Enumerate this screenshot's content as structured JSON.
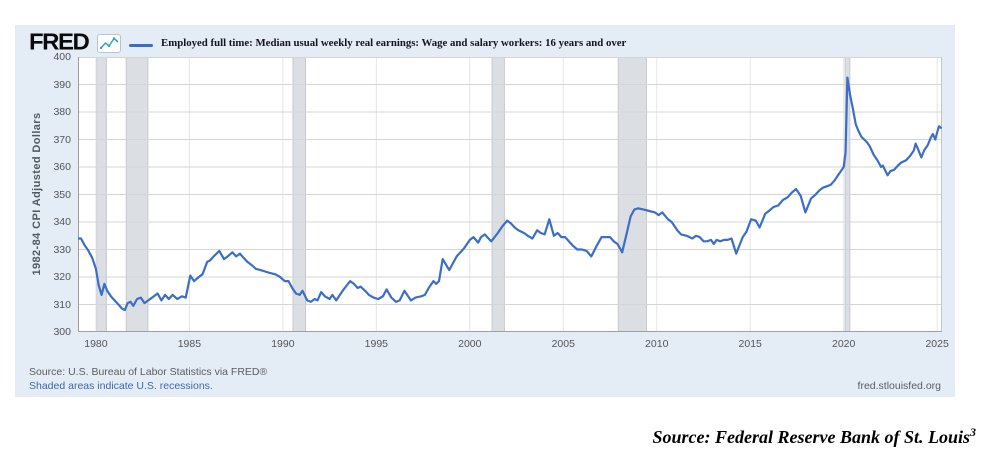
{
  "chart": {
    "brand": "FRED",
    "legend_label": "Employed full time: Median usual weekly real earnings: Wage and salary workers: 16 years and over",
    "y_axis_label": "1982-84 CPI Adjusted Dollars",
    "source_line1": "Source: U.S. Bureau of Labor Statistics via FRED®",
    "source_line2": "Shaded areas indicate U.S. recessions.",
    "site_link": "fred.stlouisfed.org",
    "colors": {
      "card_background": "#e4ecf6",
      "plot_background": "#ffffff",
      "line": "#3c6ec8",
      "recession_band": "#dbdee2",
      "recession_edge": "#c6cacf",
      "gridline": "#d5d5d5",
      "vertical_gridline": "#e4e6e9",
      "axis_line": "#a0a0a0",
      "right_border": "#c6c6c6",
      "tick_text": "#545658",
      "link_blue": "#3e69a9",
      "icon_teal": "#35a0bd"
    }
  },
  "caption": {
    "text": "Source: Federal Reserve Bank of St. Louis",
    "superscript": "3"
  },
  "chart_data": {
    "type": "line",
    "title": "Employed full time: Median usual weekly real earnings: Wage and salary workers: 16 years and over",
    "xlabel": "",
    "ylabel": "1982-84 CPI Adjusted Dollars",
    "xlim": [
      1979.04,
      2025.26
    ],
    "ylim": [
      300,
      400
    ],
    "x_ticks": [
      1980,
      1985,
      1990,
      1995,
      2000,
      2005,
      2010,
      2015,
      2020,
      2025
    ],
    "y_ticks": [
      300,
      310,
      320,
      330,
      340,
      350,
      360,
      370,
      380,
      390,
      400
    ],
    "grid": true,
    "legend_position": "top",
    "recession_bands": [
      [
        1980.04,
        1980.56
      ],
      [
        1981.62,
        1982.78
      ],
      [
        1990.54,
        1991.21
      ],
      [
        2001.19,
        2001.85
      ],
      [
        2007.94,
        2009.45
      ],
      [
        2020.08,
        2020.33
      ]
    ],
    "series": [
      {
        "name": "Employed full time: Median usual weekly real earnings: Wage and salary workers: 16 years and over",
        "color": "#3c6ec8",
        "points": [
          [
            1979.04,
            334
          ],
          [
            1979.2,
            334
          ],
          [
            1979.4,
            331.5
          ],
          [
            1979.6,
            329.5
          ],
          [
            1979.8,
            327
          ],
          [
            1980.0,
            323
          ],
          [
            1980.15,
            317
          ],
          [
            1980.3,
            313.5
          ],
          [
            1980.45,
            317.5
          ],
          [
            1980.6,
            315
          ],
          [
            1980.8,
            313
          ],
          [
            1981.0,
            311.5
          ],
          [
            1981.2,
            310
          ],
          [
            1981.4,
            308.5
          ],
          [
            1981.55,
            308
          ],
          [
            1981.7,
            310.5
          ],
          [
            1981.85,
            311
          ],
          [
            1982.0,
            309.5
          ],
          [
            1982.2,
            312
          ],
          [
            1982.4,
            312.5
          ],
          [
            1982.6,
            310.5
          ],
          [
            1982.8,
            311.5
          ],
          [
            1983.0,
            312.5
          ],
          [
            1983.3,
            314
          ],
          [
            1983.5,
            311.5
          ],
          [
            1983.7,
            313.5
          ],
          [
            1983.9,
            312
          ],
          [
            1984.1,
            313.5
          ],
          [
            1984.35,
            312
          ],
          [
            1984.6,
            313
          ],
          [
            1984.8,
            312.5
          ],
          [
            1985.05,
            320.5
          ],
          [
            1985.25,
            318.5
          ],
          [
            1985.5,
            320
          ],
          [
            1985.7,
            321
          ],
          [
            1985.95,
            325.5
          ],
          [
            1986.1,
            326
          ],
          [
            1986.3,
            327.5
          ],
          [
            1986.6,
            329.5
          ],
          [
            1986.85,
            326.5
          ],
          [
            1987.05,
            327.5
          ],
          [
            1987.3,
            329
          ],
          [
            1987.5,
            327.5
          ],
          [
            1987.7,
            328.5
          ],
          [
            1987.9,
            327
          ],
          [
            1988.1,
            325.5
          ],
          [
            1988.3,
            324.5
          ],
          [
            1988.55,
            323
          ],
          [
            1988.8,
            322.5
          ],
          [
            1989.05,
            322
          ],
          [
            1989.3,
            321.5
          ],
          [
            1989.6,
            321
          ],
          [
            1989.85,
            320
          ],
          [
            1990.1,
            318.5
          ],
          [
            1990.3,
            318.5
          ],
          [
            1990.5,
            316
          ],
          [
            1990.7,
            314
          ],
          [
            1990.9,
            313.5
          ],
          [
            1991.05,
            315
          ],
          [
            1991.3,
            311.5
          ],
          [
            1991.5,
            311
          ],
          [
            1991.7,
            312
          ],
          [
            1991.85,
            311.5
          ],
          [
            1992.05,
            314.5
          ],
          [
            1992.25,
            313
          ],
          [
            1992.5,
            312
          ],
          [
            1992.65,
            313.5
          ],
          [
            1992.85,
            311.5
          ],
          [
            1993.05,
            313.5
          ],
          [
            1993.25,
            315.5
          ],
          [
            1993.6,
            318.5
          ],
          [
            1993.8,
            317.5
          ],
          [
            1994.0,
            316
          ],
          [
            1994.15,
            316.5
          ],
          [
            1994.4,
            315
          ],
          [
            1994.6,
            313.5
          ],
          [
            1994.85,
            312.5
          ],
          [
            1995.1,
            312
          ],
          [
            1995.35,
            313
          ],
          [
            1995.55,
            315.5
          ],
          [
            1995.8,
            312.5
          ],
          [
            1996.05,
            311
          ],
          [
            1996.25,
            311.5
          ],
          [
            1996.5,
            315
          ],
          [
            1996.85,
            311.5
          ],
          [
            1997.1,
            312.5
          ],
          [
            1997.4,
            313
          ],
          [
            1997.6,
            313.5
          ],
          [
            1997.8,
            316
          ],
          [
            1998.05,
            318.5
          ],
          [
            1998.2,
            317.5
          ],
          [
            1998.35,
            318.5
          ],
          [
            1998.55,
            326.5
          ],
          [
            1998.9,
            322.5
          ],
          [
            1999.3,
            327.5
          ],
          [
            1999.7,
            330.5
          ],
          [
            2000.0,
            333.5
          ],
          [
            2000.2,
            334.5
          ],
          [
            2000.45,
            332.5
          ],
          [
            2000.6,
            334.5
          ],
          [
            2000.8,
            335.5
          ],
          [
            2001.0,
            334
          ],
          [
            2001.15,
            333
          ],
          [
            2001.5,
            336
          ],
          [
            2001.75,
            338.5
          ],
          [
            2002.0,
            340.5
          ],
          [
            2002.2,
            339.5
          ],
          [
            2002.4,
            338
          ],
          [
            2002.6,
            337
          ],
          [
            2002.9,
            336
          ],
          [
            2003.1,
            335
          ],
          [
            2003.35,
            334
          ],
          [
            2003.6,
            337
          ],
          [
            2003.8,
            336
          ],
          [
            2004.0,
            335.5
          ],
          [
            2004.25,
            341
          ],
          [
            2004.5,
            335
          ],
          [
            2004.7,
            336
          ],
          [
            2004.9,
            334.5
          ],
          [
            2005.1,
            334.5
          ],
          [
            2005.5,
            331.5
          ],
          [
            2005.75,
            330
          ],
          [
            2006.0,
            330
          ],
          [
            2006.25,
            329.5
          ],
          [
            2006.5,
            327.5
          ],
          [
            2006.8,
            331.5
          ],
          [
            2007.05,
            334.5
          ],
          [
            2007.3,
            334.5
          ],
          [
            2007.5,
            334.5
          ],
          [
            2007.7,
            333
          ],
          [
            2007.9,
            332
          ],
          [
            2008.15,
            329
          ],
          [
            2008.4,
            336
          ],
          [
            2008.6,
            342
          ],
          [
            2008.8,
            344.5
          ],
          [
            2009.0,
            345
          ],
          [
            2009.3,
            344.5
          ],
          [
            2009.6,
            344
          ],
          [
            2009.9,
            343.5
          ],
          [
            2010.1,
            342.5
          ],
          [
            2010.3,
            343.5
          ],
          [
            2010.6,
            341
          ],
          [
            2010.8,
            340
          ],
          [
            2011.1,
            337
          ],
          [
            2011.3,
            335.5
          ],
          [
            2011.6,
            335
          ],
          [
            2011.9,
            334
          ],
          [
            2012.1,
            335
          ],
          [
            2012.3,
            334.5
          ],
          [
            2012.5,
            333
          ],
          [
            2012.7,
            333
          ],
          [
            2012.9,
            333.5
          ],
          [
            2013.05,
            332
          ],
          [
            2013.2,
            333.5
          ],
          [
            2013.4,
            333
          ],
          [
            2013.6,
            333.5
          ],
          [
            2013.8,
            333.5
          ],
          [
            2014.0,
            334
          ],
          [
            2014.25,
            328.5
          ],
          [
            2014.6,
            334.5
          ],
          [
            2014.8,
            336.5
          ],
          [
            2015.05,
            341
          ],
          [
            2015.3,
            340.5
          ],
          [
            2015.5,
            338
          ],
          [
            2015.8,
            343
          ],
          [
            2016.0,
            344
          ],
          [
            2016.25,
            345.5
          ],
          [
            2016.5,
            346
          ],
          [
            2016.75,
            348
          ],
          [
            2017.0,
            349
          ],
          [
            2017.2,
            350.5
          ],
          [
            2017.45,
            352
          ],
          [
            2017.7,
            349.5
          ],
          [
            2017.95,
            343.5
          ],
          [
            2018.1,
            346
          ],
          [
            2018.25,
            348.5
          ],
          [
            2018.5,
            350
          ],
          [
            2018.7,
            351.5
          ],
          [
            2018.9,
            352.5
          ],
          [
            2019.1,
            353
          ],
          [
            2019.3,
            353.5
          ],
          [
            2019.5,
            355
          ],
          [
            2019.65,
            356.5
          ],
          [
            2019.85,
            358.5
          ],
          [
            2020.0,
            360
          ],
          [
            2020.1,
            365
          ],
          [
            2020.2,
            392.5
          ],
          [
            2020.35,
            386
          ],
          [
            2020.5,
            381
          ],
          [
            2020.65,
            375.5
          ],
          [
            2020.8,
            373
          ],
          [
            2020.95,
            371
          ],
          [
            2021.1,
            370
          ],
          [
            2021.25,
            369
          ],
          [
            2021.4,
            367.5
          ],
          [
            2021.6,
            364.5
          ],
          [
            2021.8,
            362.5
          ],
          [
            2022.0,
            360
          ],
          [
            2022.1,
            360.5
          ],
          [
            2022.35,
            357
          ],
          [
            2022.5,
            358.5
          ],
          [
            2022.7,
            359
          ],
          [
            2022.9,
            360.5
          ],
          [
            2023.05,
            361.5
          ],
          [
            2023.2,
            362
          ],
          [
            2023.35,
            362.5
          ],
          [
            2023.55,
            364
          ],
          [
            2023.75,
            366
          ],
          [
            2023.85,
            368.5
          ],
          [
            2023.95,
            367
          ],
          [
            2024.15,
            363.5
          ],
          [
            2024.3,
            366
          ],
          [
            2024.5,
            368
          ],
          [
            2024.65,
            370.5
          ],
          [
            2024.77,
            372
          ],
          [
            2024.9,
            370
          ],
          [
            2025.0,
            372.5
          ],
          [
            2025.1,
            374.8
          ],
          [
            2025.2,
            374.3
          ]
        ]
      }
    ]
  }
}
